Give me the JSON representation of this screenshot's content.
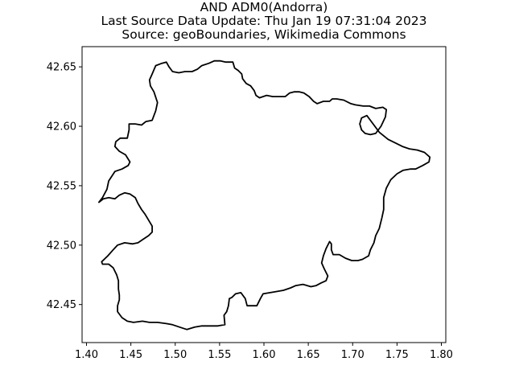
{
  "title": {
    "line1": "AND ADM0(Andorra)",
    "line2": "Last Source Data Update: Thu Jan 19 07:31:04 2023",
    "line3": "Source: geoBoundaries, Wikimedia Commons"
  },
  "chart_data": {
    "type": "map",
    "xlim": [
      1.395,
      1.805
    ],
    "ylim": [
      42.418,
      42.667
    ],
    "xticks": [
      "1.40",
      "1.45",
      "1.50",
      "1.55",
      "1.60",
      "1.65",
      "1.70",
      "1.75",
      "1.80"
    ],
    "yticks": [
      "42.45",
      "42.50",
      "42.55",
      "42.60",
      "42.65"
    ],
    "grid": false,
    "boundary_color": "#000000",
    "boundary": [
      [
        1.414,
        42.536
      ],
      [
        1.418,
        42.54
      ],
      [
        1.423,
        42.547
      ],
      [
        1.425,
        42.554
      ],
      [
        1.432,
        42.562
      ],
      [
        1.44,
        42.564
      ],
      [
        1.447,
        42.567
      ],
      [
        1.449,
        42.57
      ],
      [
        1.444,
        42.576
      ],
      [
        1.437,
        42.579
      ],
      [
        1.432,
        42.583
      ],
      [
        1.433,
        42.587
      ],
      [
        1.438,
        42.59
      ],
      [
        1.446,
        42.59
      ],
      [
        1.448,
        42.597
      ],
      [
        1.448,
        42.602
      ],
      [
        1.455,
        42.602
      ],
      [
        1.462,
        42.601
      ],
      [
        1.467,
        42.604
      ],
      [
        1.474,
        42.605
      ],
      [
        1.478,
        42.613
      ],
      [
        1.48,
        42.62
      ],
      [
        1.476,
        42.629
      ],
      [
        1.472,
        42.634
      ],
      [
        1.471,
        42.639
      ],
      [
        1.474,
        42.644
      ],
      [
        1.478,
        42.651
      ],
      [
        1.485,
        42.653
      ],
      [
        1.49,
        42.654
      ],
      [
        1.493,
        42.65
      ],
      [
        1.497,
        42.646
      ],
      [
        1.504,
        42.645
      ],
      [
        1.511,
        42.646
      ],
      [
        1.519,
        42.646
      ],
      [
        1.525,
        42.648
      ],
      [
        1.53,
        42.651
      ],
      [
        1.538,
        42.653
      ],
      [
        1.544,
        42.655
      ],
      [
        1.551,
        42.655
      ],
      [
        1.557,
        42.654
      ],
      [
        1.565,
        42.654
      ],
      [
        1.567,
        42.649
      ],
      [
        1.571,
        42.647
      ],
      [
        1.575,
        42.644
      ],
      [
        1.576,
        42.64
      ],
      [
        1.58,
        42.636
      ],
      [
        1.585,
        42.634
      ],
      [
        1.589,
        42.63
      ],
      [
        1.591,
        42.626
      ],
      [
        1.595,
        42.624
      ],
      [
        1.603,
        42.626
      ],
      [
        1.61,
        42.625
      ],
      [
        1.618,
        42.625
      ],
      [
        1.624,
        42.625
      ],
      [
        1.629,
        42.628
      ],
      [
        1.634,
        42.629
      ],
      [
        1.64,
        42.629
      ],
      [
        1.645,
        42.628
      ],
      [
        1.651,
        42.625
      ],
      [
        1.656,
        42.621
      ],
      [
        1.66,
        42.619
      ],
      [
        1.667,
        42.621
      ],
      [
        1.674,
        42.621
      ],
      [
        1.677,
        42.623
      ],
      [
        1.682,
        42.623
      ],
      [
        1.69,
        42.622
      ],
      [
        1.698,
        42.619
      ],
      [
        1.703,
        42.618
      ],
      [
        1.712,
        42.617
      ],
      [
        1.719,
        42.617
      ],
      [
        1.726,
        42.615
      ],
      [
        1.734,
        42.616
      ],
      [
        1.738,
        42.614
      ],
      [
        1.737,
        42.608
      ],
      [
        1.732,
        42.6
      ],
      [
        1.726,
        42.594
      ],
      [
        1.72,
        42.593
      ],
      [
        1.714,
        42.594
      ],
      [
        1.71,
        42.597
      ],
      [
        1.708,
        42.602
      ],
      [
        1.71,
        42.607
      ],
      [
        1.716,
        42.609
      ],
      [
        1.73,
        42.595
      ],
      [
        1.74,
        42.589
      ],
      [
        1.748,
        42.586
      ],
      [
        1.756,
        42.583
      ],
      [
        1.764,
        42.581
      ],
      [
        1.773,
        42.58
      ],
      [
        1.781,
        42.578
      ],
      [
        1.787,
        42.574
      ],
      [
        1.786,
        42.57
      ],
      [
        1.779,
        42.567
      ],
      [
        1.771,
        42.564
      ],
      [
        1.765,
        42.564
      ],
      [
        1.757,
        42.563
      ],
      [
        1.75,
        42.56
      ],
      [
        1.743,
        42.555
      ],
      [
        1.738,
        42.548
      ],
      [
        1.735,
        42.54
      ],
      [
        1.735,
        42.53
      ],
      [
        1.733,
        42.523
      ],
      [
        1.73,
        42.514
      ],
      [
        1.726,
        42.508
      ],
      [
        1.724,
        42.502
      ],
      [
        1.72,
        42.496
      ],
      [
        1.718,
        42.491
      ],
      [
        1.711,
        42.488
      ],
      [
        1.706,
        42.487
      ],
      [
        1.699,
        42.487
      ],
      [
        1.692,
        42.489
      ],
      [
        1.685,
        42.492
      ],
      [
        1.678,
        42.492
      ],
      [
        1.676,
        42.496
      ],
      [
        1.676,
        42.501
      ],
      [
        1.674,
        42.503
      ],
      [
        1.67,
        42.497
      ],
      [
        1.667,
        42.491
      ],
      [
        1.665,
        42.485
      ],
      [
        1.668,
        42.48
      ],
      [
        1.672,
        42.474
      ],
      [
        1.67,
        42.47
      ],
      [
        1.664,
        42.468
      ],
      [
        1.659,
        42.466
      ],
      [
        1.653,
        42.465
      ],
      [
        1.644,
        42.467
      ],
      [
        1.636,
        42.466
      ],
      [
        1.63,
        42.464
      ],
      [
        1.622,
        42.462
      ],
      [
        1.615,
        42.461
      ],
      [
        1.607,
        42.46
      ],
      [
        1.599,
        42.459
      ],
      [
        1.596,
        42.455
      ],
      [
        1.592,
        42.449
      ],
      [
        1.585,
        42.449
      ],
      [
        1.581,
        42.449
      ],
      [
        1.579,
        42.455
      ],
      [
        1.574,
        42.46
      ],
      [
        1.568,
        42.459
      ],
      [
        1.564,
        42.456
      ],
      [
        1.561,
        42.455
      ],
      [
        1.56,
        42.449
      ],
      [
        1.558,
        42.444
      ],
      [
        1.555,
        42.441
      ],
      [
        1.556,
        42.433
      ],
      [
        1.548,
        42.432
      ],
      [
        1.539,
        42.432
      ],
      [
        1.53,
        42.432
      ],
      [
        1.522,
        42.431
      ],
      [
        1.513,
        42.429
      ],
      [
        1.505,
        42.431
      ],
      [
        1.497,
        42.433
      ],
      [
        1.49,
        42.434
      ],
      [
        1.48,
        42.435
      ],
      [
        1.471,
        42.435
      ],
      [
        1.463,
        42.436
      ],
      [
        1.453,
        42.435
      ],
      [
        1.446,
        42.436
      ],
      [
        1.44,
        42.439
      ],
      [
        1.435,
        42.444
      ],
      [
        1.435,
        42.449
      ],
      [
        1.437,
        42.454
      ],
      [
        1.437,
        42.458
      ],
      [
        1.436,
        42.463
      ],
      [
        1.436,
        42.47
      ],
      [
        1.434,
        42.475
      ],
      [
        1.43,
        42.481
      ],
      [
        1.425,
        42.484
      ],
      [
        1.418,
        42.484
      ],
      [
        1.417,
        42.486
      ],
      [
        1.424,
        42.491
      ],
      [
        1.43,
        42.496
      ],
      [
        1.435,
        42.5
      ],
      [
        1.443,
        42.502
      ],
      [
        1.452,
        42.501
      ],
      [
        1.458,
        42.502
      ],
      [
        1.464,
        42.505
      ],
      [
        1.47,
        42.508
      ],
      [
        1.474,
        42.511
      ],
      [
        1.474,
        42.516
      ],
      [
        1.47,
        42.521
      ],
      [
        1.466,
        42.526
      ],
      [
        1.462,
        42.53
      ],
      [
        1.458,
        42.535
      ],
      [
        1.455,
        42.54
      ],
      [
        1.449,
        42.543
      ],
      [
        1.443,
        42.544
      ],
      [
        1.437,
        42.542
      ],
      [
        1.432,
        42.539
      ],
      [
        1.425,
        42.54
      ],
      [
        1.419,
        42.539
      ],
      [
        1.414,
        42.536
      ]
    ]
  }
}
